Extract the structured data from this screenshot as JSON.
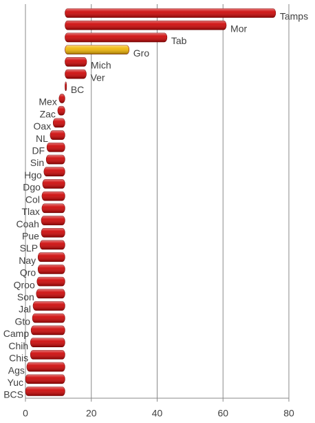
{
  "chart_data": {
    "type": "bar",
    "orientation": "horizontal",
    "categories": [
      "Tamps",
      "Mor",
      "Tab",
      "Gro",
      "Mich",
      "Ver",
      "BC",
      "Mex",
      "Zac",
      "Oax",
      "NL",
      "DF",
      "Sin",
      "Hgo",
      "Dgo",
      "Col",
      "Tlax",
      "Coah",
      "Pue",
      "SLP",
      "Nay",
      "Qro",
      "Qroo",
      "Son",
      "Jal",
      "Gto",
      "Camp",
      "Chih",
      "Chis",
      "Ags",
      "Yuc",
      "BCS"
    ],
    "values": [
      76,
      61,
      43,
      31.5,
      18.6,
      18.5,
      12.5,
      10.2,
      9.8,
      8.4,
      7.5,
      6.5,
      6.3,
      5.6,
      5.2,
      5,
      5,
      4.8,
      4.8,
      4.4,
      3.8,
      3.8,
      3.5,
      3.3,
      2.3,
      2.1,
      1.7,
      1.5,
      1.5,
      0.4,
      0,
      0
    ],
    "colors": [
      "#cc0000",
      "#cc0000",
      "#cc0000",
      "#f0b400",
      "#cc0000",
      "#cc0000",
      "#cc0000",
      "#cc0000",
      "#cc0000",
      "#cc0000",
      "#cc0000",
      "#cc0000",
      "#cc0000",
      "#cc0000",
      "#cc0000",
      "#cc0000",
      "#cc0000",
      "#cc0000",
      "#cc0000",
      "#cc0000",
      "#cc0000",
      "#cc0000",
      "#cc0000",
      "#cc0000",
      "#cc0000",
      "#cc0000",
      "#cc0000",
      "#cc0000",
      "#cc0000",
      "#cc0000",
      "#cc0000",
      "#cc0000"
    ],
    "axis_crosses_at": 12,
    "xlim": [
      0,
      80
    ],
    "xticks": [
      0,
      20,
      40,
      60,
      80
    ],
    "grid": true
  }
}
